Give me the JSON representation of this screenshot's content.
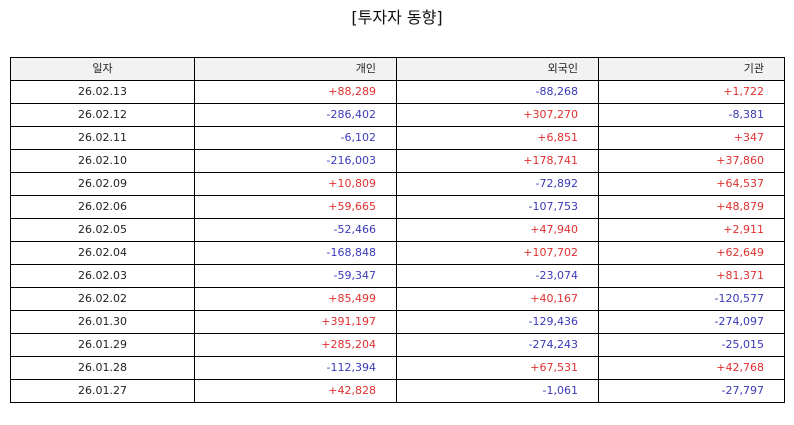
{
  "title": "[투자자 동향]",
  "colors": {
    "positive": "#e03030",
    "negative": "#3a3ab8",
    "header_bg": "#f2f2f2"
  },
  "table": {
    "headers": [
      "일자",
      "개인",
      "외국인",
      "기관"
    ],
    "rows": [
      [
        "26.02.13",
        "+88,289",
        "-88,268",
        "+1,722"
      ],
      [
        "26.02.12",
        "-286,402",
        "+307,270",
        "-8,381"
      ],
      [
        "26.02.11",
        "-6,102",
        "+6,851",
        "+347"
      ],
      [
        "26.02.10",
        "-216,003",
        "+178,741",
        "+37,860"
      ],
      [
        "26.02.09",
        "+10,809",
        "-72,892",
        "+64,537"
      ],
      [
        "26.02.06",
        "+59,665",
        "-107,753",
        "+48,879"
      ],
      [
        "26.02.05",
        "-52,466",
        "+47,940",
        "+2,911"
      ],
      [
        "26.02.04",
        "-168,848",
        "+107,702",
        "+62,649"
      ],
      [
        "26.02.03",
        "-59,347",
        "-23,074",
        "+81,371"
      ],
      [
        "26.02.02",
        "+85,499",
        "+40,167",
        "-120,577"
      ],
      [
        "26.01.30",
        "+391,197",
        "-129,436",
        "-274,097"
      ],
      [
        "26.01.29",
        "+285,204",
        "-274,243",
        "-25,015"
      ],
      [
        "26.01.28",
        "-112,394",
        "+67,531",
        "+42,768"
      ],
      [
        "26.01.27",
        "+42,828",
        "-1,061",
        "-27,797"
      ]
    ]
  }
}
